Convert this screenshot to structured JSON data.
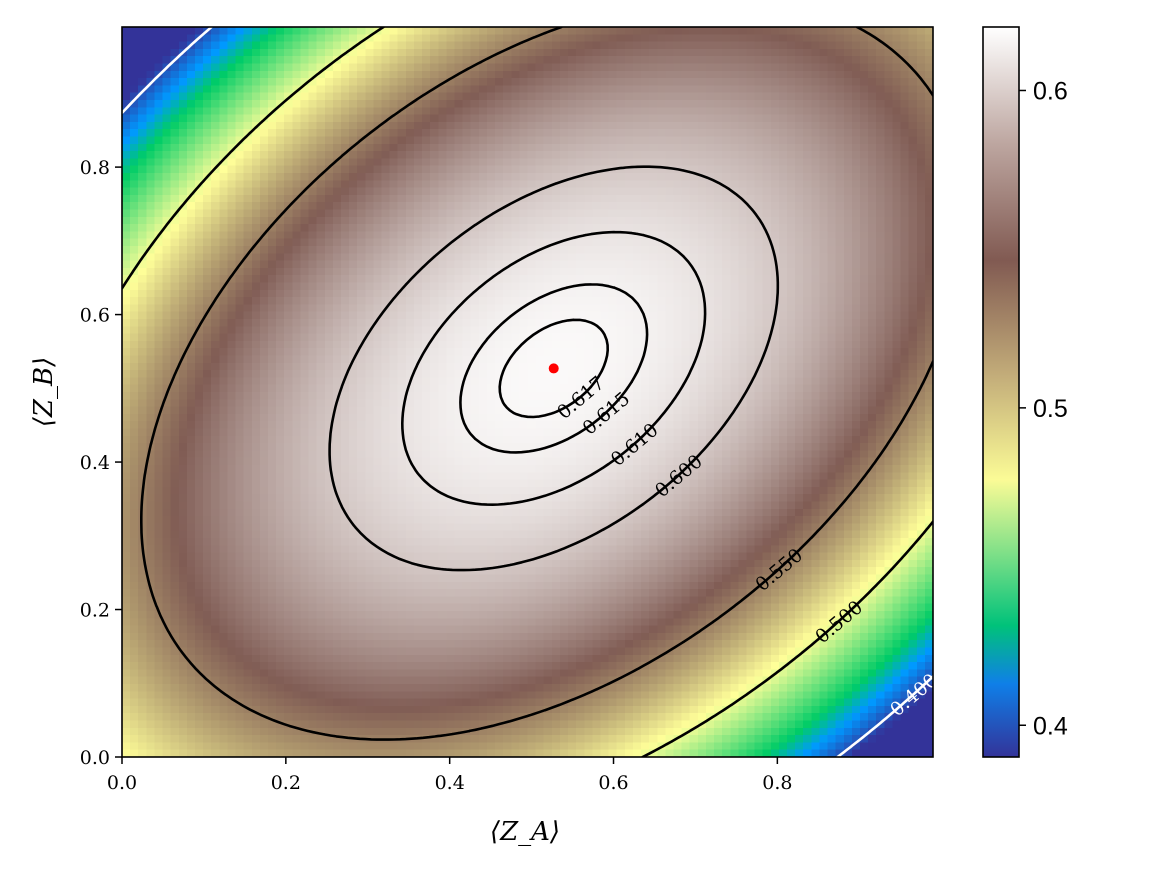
{
  "chart_data": {
    "type": "heatmap",
    "title": "",
    "xlabel": "⟨Z_A⟩",
    "ylabel": "⟨Z_B⟩",
    "xlim": [
      0.0,
      0.99
    ],
    "ylim": [
      0.0,
      0.99
    ],
    "x_ticks": [
      "0.0",
      "0.2",
      "0.4",
      "0.6",
      "0.8"
    ],
    "y_ticks": [
      "0.0",
      "0.2",
      "0.4",
      "0.6",
      "0.8"
    ],
    "colorbar": {
      "colormap": "terrain",
      "range": [
        0.39,
        0.62
      ],
      "ticks": [
        "0.4",
        "0.5",
        "0.6"
      ],
      "tick_values": [
        0.4,
        0.5,
        0.6
      ]
    },
    "contours": [
      {
        "level": 0.617,
        "label": "0.617",
        "color": "#000000"
      },
      {
        "level": 0.615,
        "label": "0.615",
        "color": "#000000"
      },
      {
        "level": 0.61,
        "label": "0.610",
        "color": "#000000"
      },
      {
        "level": 0.6,
        "label": "0.600",
        "color": "#000000"
      },
      {
        "level": 0.55,
        "label": "0.550",
        "color": "#000000"
      },
      {
        "level": 0.5,
        "label": "0.500",
        "color": "#000000"
      },
      {
        "level": 0.4,
        "label": "0.400",
        "color": "#ffffff"
      }
    ],
    "maximum_point": {
      "x": 0.527,
      "y": 0.527,
      "value": 0.618,
      "color": "#ff0000"
    },
    "grid": false
  }
}
